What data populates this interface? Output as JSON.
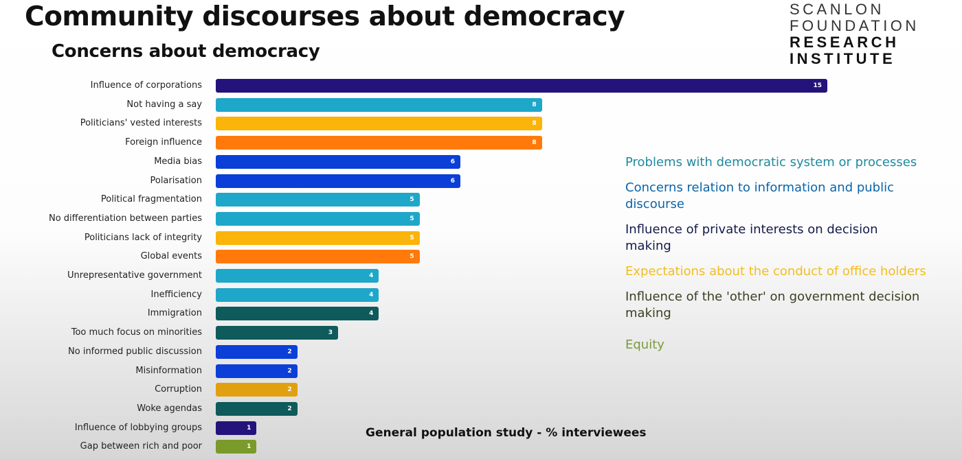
{
  "title": "Community discourses about democracy",
  "logo": {
    "lines": [
      "SCANLON",
      "FOUNDATION",
      "RESEARCH",
      "INSTITUTE"
    ]
  },
  "chart_data": {
    "type": "bar",
    "orientation": "horizontal",
    "title": "Concerns about democracy",
    "note": "General population study - % interviewees",
    "categories": [
      "Influence of corporations",
      "Not having a say",
      "Politicians' vested interests",
      "Foreign influence",
      "Media bias",
      "Polarisation",
      "Political fragmentation",
      "No differentiation between parties",
      "Politicians lack of integrity",
      "Global events",
      "Unrepresentative government",
      "Inefficiency",
      "Immigration",
      "Too much focus on minorities",
      "No informed public discussion",
      "Misinformation",
      "Corruption",
      "Woke agendas",
      "Influence of lobbying groups",
      "Gap between rich and poor"
    ],
    "values": [
      15,
      8,
      8,
      8,
      6,
      6,
      5,
      5,
      5,
      5,
      4,
      4,
      4,
      3,
      2,
      2,
      2,
      2,
      1,
      1
    ],
    "colors": [
      "#24137a",
      "#1ea7c9",
      "#fbb40a",
      "#ff7a0a",
      "#0b3fd8",
      "#0b3fd8",
      "#1ea7c9",
      "#1ea7c9",
      "#fbb40a",
      "#ff7a0a",
      "#1ea7c9",
      "#1ea7c9",
      "#0f5a5a",
      "#0f5a5a",
      "#0b3fd8",
      "#0b3fd8",
      "#e0a010",
      "#0f5a5a",
      "#24137a",
      "#7a9a2a"
    ],
    "xlim": [
      0,
      15
    ],
    "legend": [
      {
        "label": "Problems with democratic system or processes",
        "color": "#1f8a9e"
      },
      {
        "label": "Concerns relation to information and public discourse",
        "color": "#0a64a8"
      },
      {
        "label": "Influence of private interests on decision making",
        "color": "#141a4a"
      },
      {
        "label": "Expectations about the conduct of office holders",
        "color": "#f2be1e"
      },
      {
        "label": "Influence of the 'other' on government decision making",
        "color": "#3a3f22"
      },
      {
        "label": "Equity",
        "color": "#7a9a3a"
      }
    ],
    "legend_position": "right"
  }
}
